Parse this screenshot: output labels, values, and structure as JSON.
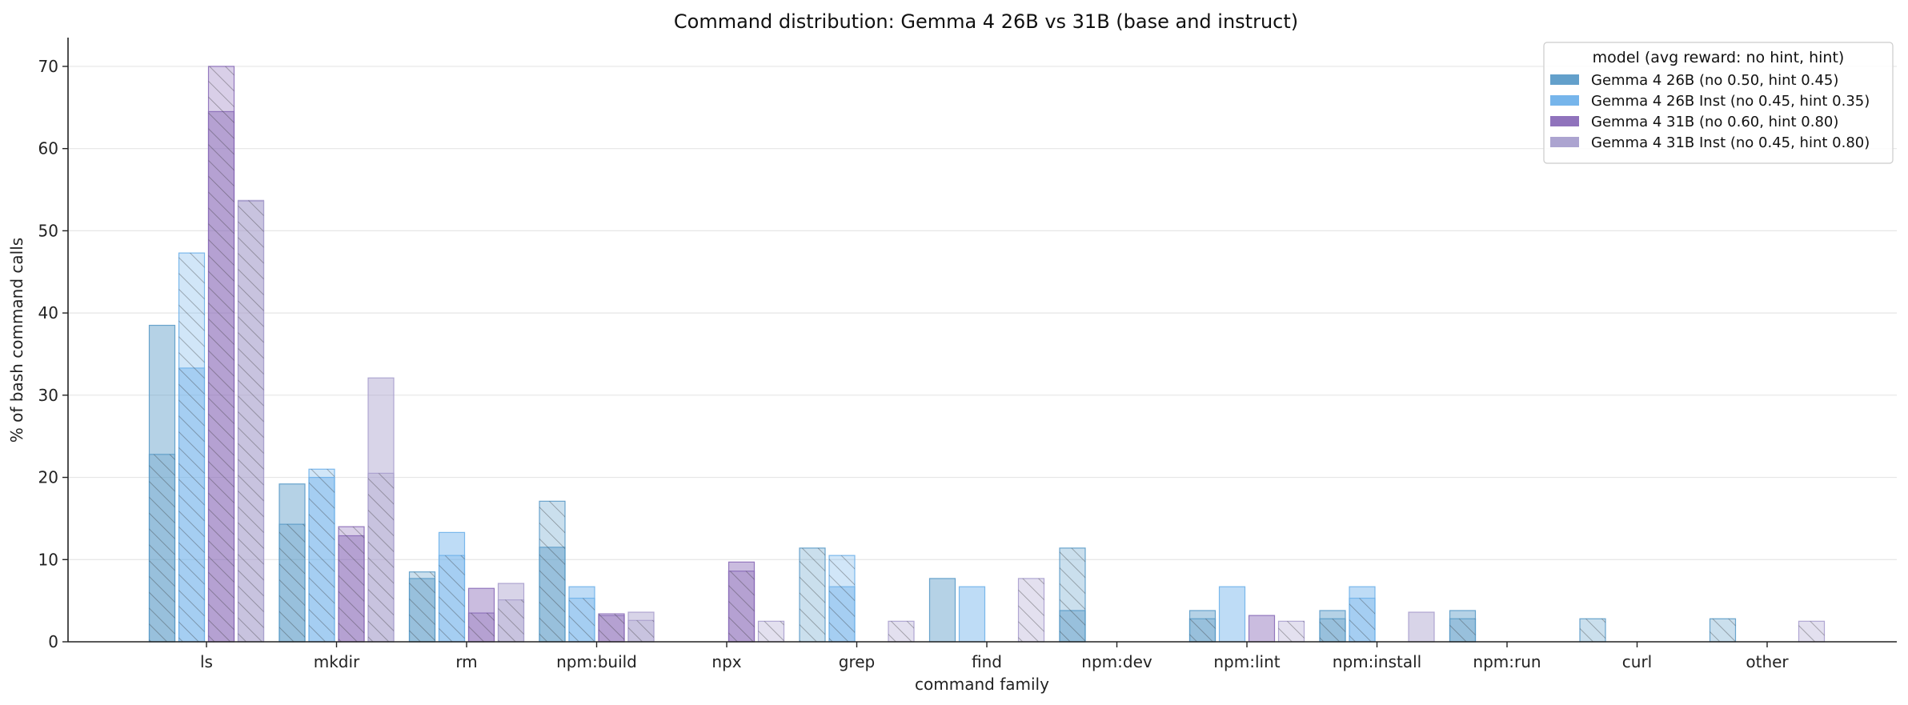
{
  "chart_data": {
    "type": "bar",
    "title": "Command distribution: Gemma 4 26B vs 31B (base and instruct)",
    "xlabel": "command family",
    "ylabel": "% of bash command calls",
    "ylim": [
      0,
      73.5
    ],
    "yticks": [
      "0",
      "10",
      "20",
      "30",
      "40",
      "50",
      "60",
      "70"
    ],
    "grid": "y",
    "legend_position": "top-right",
    "legend_title": "model (avg reward: no hint, hint)",
    "categories": [
      "ls",
      "mkdir",
      "rm",
      "npm:build",
      "npx",
      "grep",
      "find",
      "npm:dev",
      "npm:lint",
      "npm:install",
      "npm:run",
      "curl",
      "other"
    ],
    "series": [
      {
        "name": "Gemma 4 26B (no 0.50, hint 0.45)",
        "color": "#5b9bc8",
        "no_hint": [
          38.5,
          19.2,
          7.7,
          11.5,
          0,
          0,
          7.7,
          3.8,
          3.8,
          3.8,
          3.8,
          0,
          0
        ],
        "hint": [
          22.8,
          14.3,
          8.5,
          17.1,
          0,
          11.4,
          0,
          11.4,
          2.8,
          2.8,
          2.8,
          2.8,
          2.8
        ]
      },
      {
        "name": "Gemma 4 26B Inst (no 0.45, hint 0.35)",
        "color": "#6fb1ea",
        "no_hint": [
          33.3,
          20.0,
          13.3,
          6.7,
          0,
          6.7,
          6.7,
          0,
          6.7,
          6.7,
          0,
          0,
          0
        ],
        "hint": [
          47.3,
          21.0,
          10.5,
          5.3,
          0,
          10.5,
          0,
          0,
          0,
          5.3,
          0,
          0,
          0
        ]
      },
      {
        "name": "Gemma 4 31B (no 0.60, hint 0.80)",
        "color": "#8a6bb8",
        "no_hint": [
          64.5,
          12.9,
          6.5,
          3.2,
          9.7,
          0,
          0,
          0,
          3.2,
          0,
          0,
          0,
          0
        ],
        "hint": [
          70.0,
          14.0,
          3.5,
          3.4,
          8.6,
          0,
          0,
          0,
          0,
          0,
          0,
          0,
          0
        ]
      },
      {
        "name": "Gemma 4 31B Inst (no 0.45, hint 0.80)",
        "color": "#a89fcd",
        "no_hint": [
          53.6,
          32.1,
          7.1,
          3.6,
          0,
          0,
          0,
          0,
          0,
          3.6,
          0,
          0,
          0
        ],
        "hint": [
          53.7,
          20.5,
          5.1,
          2.6,
          2.5,
          2.5,
          7.7,
          0,
          2.5,
          0,
          0,
          0,
          2.5
        ]
      }
    ]
  }
}
